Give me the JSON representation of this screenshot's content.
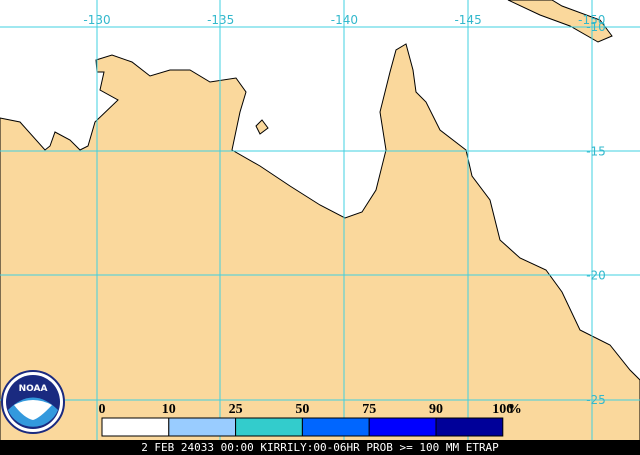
{
  "map": {
    "longitude_labels": [
      "-130",
      "-135",
      "-140",
      "-145",
      "-150"
    ],
    "latitude_labels": [
      "-10",
      "-15",
      "-20",
      "-25"
    ],
    "legend": {
      "labels": [
        "0",
        "10",
        "25",
        "50",
        "75",
        "90",
        "100"
      ],
      "unit": "%",
      "colors": [
        "#ffffff",
        "#99ccff",
        "#33cccc",
        "#0066ff",
        "#0000ff",
        "#000099"
      ]
    },
    "footer": "2 FEB 24033 00:00 KIRRILY:00-06HR PROB >= 100 MM ETRAP"
  }
}
